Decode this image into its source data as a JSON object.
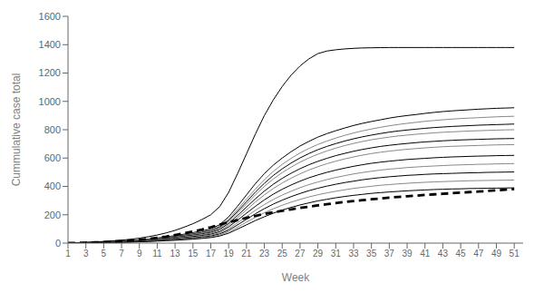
{
  "chart_data": {
    "type": "line",
    "xlabel": "Week",
    "ylabel": "Cummulative case total",
    "x": [
      1,
      2,
      3,
      4,
      5,
      6,
      7,
      8,
      9,
      10,
      11,
      12,
      13,
      14,
      15,
      16,
      17,
      18,
      19,
      20,
      21,
      22,
      23,
      24,
      25,
      26,
      27,
      28,
      29,
      30,
      31,
      32,
      33,
      34,
      35,
      36,
      37,
      38,
      39,
      40,
      41,
      42,
      43,
      44,
      45,
      46,
      47,
      48,
      49,
      50,
      51
    ],
    "xlim": [
      1,
      52
    ],
    "ylim": [
      0,
      1600
    ],
    "xticks": [
      1,
      3,
      5,
      7,
      9,
      11,
      13,
      15,
      17,
      19,
      21,
      23,
      25,
      27,
      29,
      31,
      33,
      35,
      37,
      39,
      41,
      43,
      45,
      47,
      49,
      51
    ],
    "yticks": [
      0,
      200,
      400,
      600,
      800,
      1000,
      1200,
      1400,
      1600
    ],
    "grid": false,
    "series": [
      {
        "color": "#000000",
        "line_style": "solid",
        "values": [
          0,
          2,
          4,
          6,
          8,
          11,
          14,
          18,
          23,
          29,
          36,
          44,
          53,
          63,
          74,
          86,
          100,
          130,
          185,
          260,
          340,
          420,
          490,
          550,
          600,
          645,
          685,
          718,
          748,
          772,
          793,
          812,
          830,
          845,
          858,
          870,
          882,
          892,
          900,
          907,
          915,
          922,
          928,
          933,
          937,
          941,
          945,
          948,
          951,
          953,
          955
        ]
      },
      {
        "color": "#888888",
        "line_style": "solid",
        "values": [
          0,
          2,
          4,
          6,
          8,
          11,
          14,
          17,
          22,
          27,
          33,
          40,
          49,
          58,
          68,
          79,
          92,
          120,
          170,
          238,
          310,
          382,
          448,
          506,
          555,
          598,
          636,
          668,
          696,
          720,
          741,
          760,
          777,
          792,
          805,
          817,
          828,
          837,
          845,
          852,
          859,
          865,
          870,
          875,
          879,
          882,
          885,
          888,
          891,
          893,
          895
        ]
      },
      {
        "color": "#000000",
        "line_style": "solid",
        "values": [
          0,
          2,
          4,
          5,
          7,
          10,
          13,
          16,
          20,
          25,
          31,
          38,
          46,
          55,
          64,
          75,
          87,
          113,
          160,
          224,
          292,
          360,
          422,
          477,
          524,
          565,
          601,
          632,
          659,
          682,
          702,
          720,
          736,
          750,
          762,
          773,
          783,
          791,
          798,
          804,
          810,
          815,
          819,
          823,
          826,
          829,
          832,
          834,
          836,
          838,
          840
        ]
      },
      {
        "color": "#888888",
        "line_style": "solid",
        "values": [
          0,
          1,
          3,
          5,
          7,
          9,
          12,
          15,
          19,
          24,
          30,
          36,
          44,
          52,
          61,
          71,
          83,
          107,
          152,
          213,
          277,
          341,
          400,
          452,
          497,
          536,
          571,
          601,
          627,
          650,
          670,
          688,
          703,
          717,
          729,
          739,
          748,
          756,
          762,
          768,
          773,
          778,
          782,
          785,
          788,
          791,
          793,
          795,
          797,
          799,
          800
        ]
      },
      {
        "color": "#000000",
        "line_style": "solid",
        "values": [
          0,
          1,
          3,
          4,
          6,
          8,
          11,
          14,
          17,
          22,
          27,
          33,
          40,
          48,
          56,
          65,
          76,
          98,
          139,
          195,
          254,
          313,
          367,
          415,
          457,
          493,
          525,
          553,
          577,
          598,
          617,
          633,
          648,
          661,
          672,
          682,
          690,
          697,
          703,
          709,
          714,
          718,
          722,
          725,
          728,
          730,
          732,
          734,
          736,
          737,
          738
        ]
      },
      {
        "color": "#888888",
        "line_style": "solid",
        "values": [
          0,
          1,
          2,
          4,
          5,
          7,
          10,
          12,
          16,
          20,
          25,
          30,
          37,
          44,
          51,
          60,
          70,
          90,
          128,
          180,
          235,
          290,
          340,
          385,
          424,
          458,
          489,
          516,
          539,
          560,
          578,
          594,
          608,
          621,
          632,
          641,
          649,
          656,
          662,
          667,
          672,
          676,
          680,
          683,
          685,
          687,
          689,
          691,
          693,
          694,
          695
        ]
      },
      {
        "color": "#000000",
        "line_style": "solid",
        "values": [
          0,
          1,
          2,
          3,
          5,
          7,
          9,
          11,
          14,
          18,
          22,
          27,
          33,
          39,
          46,
          54,
          63,
          81,
          115,
          162,
          211,
          260,
          305,
          345,
          380,
          410,
          437,
          461,
          481,
          499,
          515,
          529,
          542,
          553,
          563,
          571,
          578,
          584,
          590,
          594,
          598,
          602,
          605,
          608,
          610,
          612,
          614,
          615,
          617,
          618,
          619
        ]
      },
      {
        "color": "#888888",
        "line_style": "solid",
        "values": [
          0,
          1,
          2,
          3,
          4,
          6,
          8,
          10,
          13,
          16,
          20,
          24,
          29,
          35,
          41,
          48,
          56,
          72,
          102,
          144,
          188,
          232,
          272,
          308,
          339,
          366,
          391,
          413,
          431,
          448,
          463,
          476,
          488,
          498,
          507,
          515,
          522,
          527,
          533,
          537,
          541,
          544,
          547,
          550,
          552,
          554,
          556,
          557,
          559,
          560,
          561
        ]
      },
      {
        "color": "#000000",
        "line_style": "solid",
        "values": [
          0,
          1,
          2,
          3,
          4,
          5,
          7,
          9,
          11,
          14,
          18,
          22,
          26,
          31,
          37,
          43,
          50,
          65,
          91,
          129,
          168,
          207,
          243,
          275,
          303,
          328,
          350,
          370,
          387,
          402,
          415,
          427,
          437,
          447,
          455,
          462,
          468,
          473,
          478,
          481,
          485,
          488,
          490,
          492,
          494,
          496,
          497,
          499,
          500,
          501,
          502
        ]
      },
      {
        "color": "#888888",
        "line_style": "solid",
        "values": [
          0,
          1,
          2,
          2,
          3,
          5,
          6,
          8,
          10,
          13,
          16,
          19,
          23,
          27,
          32,
          38,
          44,
          57,
          80,
          113,
          148,
          182,
          214,
          242,
          267,
          289,
          308,
          326,
          341,
          354,
          366,
          376,
          386,
          394,
          401,
          408,
          413,
          418,
          422,
          426,
          429,
          432,
          434,
          436,
          438,
          440,
          441,
          442,
          443,
          444,
          445
        ]
      },
      {
        "color": "#000000",
        "line_style": "solid",
        "values": [
          0,
          1,
          1,
          2,
          3,
          4,
          6,
          7,
          9,
          11,
          14,
          17,
          20,
          24,
          28,
          33,
          39,
          50,
          70,
          99,
          129,
          159,
          186,
          211,
          233,
          252,
          269,
          284,
          298,
          309,
          320,
          329,
          337,
          344,
          351,
          356,
          361,
          365,
          369,
          372,
          375,
          378,
          380,
          382,
          383,
          385,
          386,
          387,
          388,
          389,
          390
        ]
      },
      {
        "color": "#000000",
        "line_style": "solid",
        "values": [
          0,
          2,
          5,
          8,
          12,
          16,
          21,
          27,
          35,
          45,
          57,
          72,
          90,
          112,
          137,
          166,
          200,
          258,
          358,
          490,
          630,
          770,
          900,
          1010,
          1105,
          1185,
          1250,
          1300,
          1337,
          1355,
          1364,
          1370,
          1374,
          1377,
          1378,
          1379,
          1380,
          1380,
          1380,
          1380,
          1380,
          1380,
          1380,
          1380,
          1380,
          1380,
          1380,
          1380,
          1380,
          1380,
          1380
        ]
      },
      {
        "color": "#000000",
        "line_style": "dashed",
        "values": [
          0,
          1,
          3,
          5,
          7,
          10,
          14,
          18,
          23,
          29,
          37,
          46,
          57,
          69,
          82,
          96,
          112,
          130,
          148,
          163,
          178,
          192,
          205,
          217,
          228,
          238,
          248,
          257,
          266,
          274,
          282,
          290,
          297,
          303,
          309,
          315,
          321,
          326,
          331,
          335,
          340,
          344,
          348,
          352,
          356,
          360,
          364,
          368,
          372,
          377,
          382
        ]
      }
    ]
  }
}
